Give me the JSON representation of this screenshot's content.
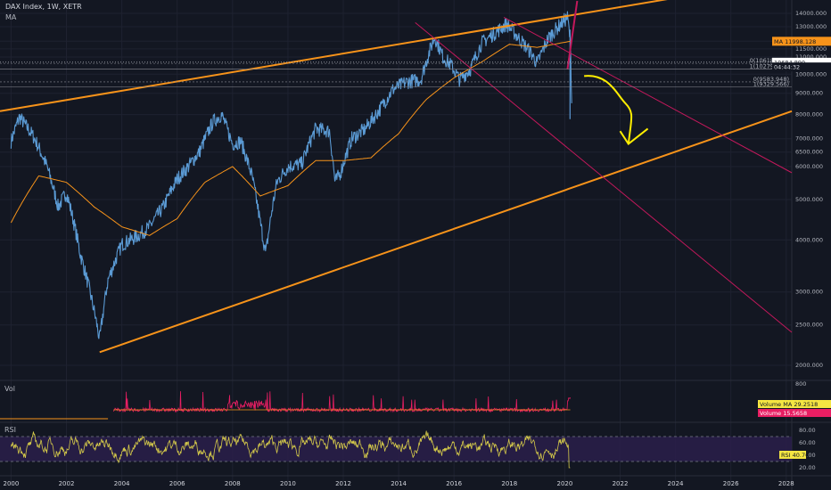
{
  "header": {
    "title": "DAX Index, 1W, XETR",
    "indicator": "MA"
  },
  "panes": {
    "volume_label": "Vol",
    "rsi_label": "RSI"
  },
  "colors": {
    "bg": "#131722",
    "price": "#5b9bd5",
    "ma": "#f7931a",
    "channel": "#f7931a",
    "pink": "#c2185b",
    "volume": "#e91e63",
    "rsi": "#d4c94a",
    "rsiband": "#2a1f4a",
    "arrow": "#ffee00"
  },
  "chart_data": {
    "type": "line",
    "symbol": "DAX Index",
    "interval": "1W",
    "exchange": "XETR",
    "x_ticks": [
      "2000",
      "2002",
      "2004",
      "2006",
      "2008",
      "2010",
      "2012",
      "2014",
      "2016",
      "2018",
      "2020",
      "2022",
      "2024",
      "2026",
      "2028"
    ],
    "x_range": [
      1999.6,
      2028.2
    ],
    "y_range": [
      1600,
      14400
    ],
    "y_ticks": [
      "14000.000",
      "13000.000",
      "12000.000",
      "11500.000",
      "11000.000",
      "10000.000",
      "9000.000",
      "8000.000",
      "7000.000",
      "6500.000",
      "6000.000",
      "5000.000",
      "4000.000",
      "3000.000",
      "2500.000",
      "2000.000"
    ],
    "series": [
      {
        "values_year": [
          2000.0,
          2000.3,
          2000.8,
          2001.3,
          2001.7,
          2002.0,
          2002.5,
          2002.9,
          2003.2,
          2003.5,
          2004.0,
          2004.6,
          2005.0,
          2005.5,
          2006.0,
          2006.4,
          2006.8,
          2007.3,
          2007.6,
          2008.0,
          2008.3,
          2008.7,
          2009.0,
          2009.2,
          2009.6,
          2010.0,
          2010.5,
          2011.0,
          2011.5,
          2011.7,
          2011.9,
          2012.3,
          2012.8,
          2013.3,
          2013.8,
          2014.3,
          2014.8,
          2015.3,
          2015.6,
          2015.9,
          2016.2,
          2016.6,
          2017.0,
          2017.5,
          2017.9,
          2018.3,
          2018.8,
          2019.0,
          2019.4,
          2019.9,
          2020.1,
          2020.2,
          2020.25
        ],
        "values": [
          6900,
          7900,
          7100,
          6000,
          4800,
          5200,
          3700,
          2900,
          2300,
          3200,
          3900,
          4100,
          4300,
          4800,
          5600,
          6000,
          6500,
          7700,
          8000,
          6800,
          6900,
          5700,
          4400,
          3700,
          5500,
          6000,
          6100,
          7400,
          7300,
          5500,
          5800,
          7000,
          7400,
          8200,
          9200,
          9600,
          9700,
          12300,
          11000,
          10500,
          9700,
          10300,
          11900,
          12600,
          13200,
          12300,
          11200,
          10600,
          12200,
          13300,
          13700,
          12000,
          8500
        ]
      },
      {
        "name": "MA",
        "values_year": [
          2000,
          2001,
          2002,
          2003,
          2004,
          2005,
          2006,
          2007,
          2008,
          2009,
          2010,
          2011,
          2012,
          2013,
          2014,
          2015,
          2016,
          2017,
          2018,
          2019,
          2020.2
        ],
        "values": [
          4400,
          5700,
          5500,
          4800,
          4300,
          4100,
          4500,
          5500,
          6000,
          5100,
          5400,
          6200,
          6200,
          6300,
          7200,
          8700,
          9800,
          10700,
          11800,
          11600,
          11998
        ]
      }
    ],
    "annotations": [
      "MA 11998.128",
      "10684.890",
      "04:44:32",
      "0(10618.434)",
      "1(10279.258)",
      "0(9583.948)",
      "1(9329.566)"
    ],
    "volume": {
      "ticks": [
        "800"
      ],
      "labels": [
        "Volume MA 29.2518",
        "Volume 15.5658"
      ]
    },
    "rsi": {
      "ticks": [
        "80.00",
        "60.00",
        "40.00",
        "20.00"
      ],
      "label": "RSI 40.76",
      "upper": 70,
      "lower": 30
    }
  }
}
